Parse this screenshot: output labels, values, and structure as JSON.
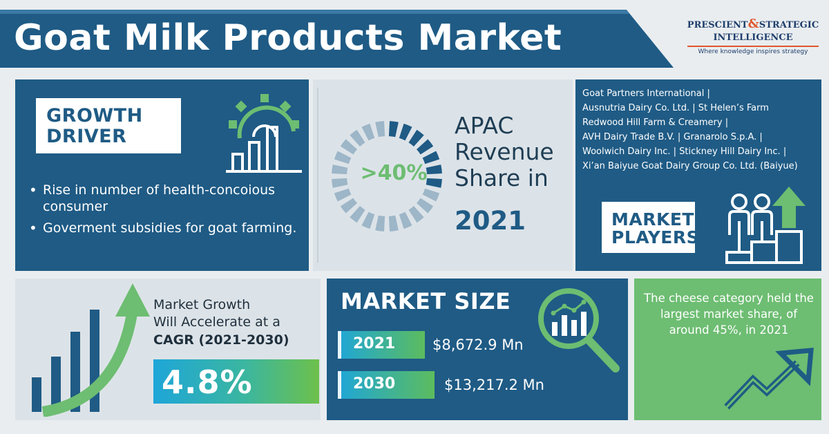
{
  "header": {
    "title": "Goat Milk Products Market"
  },
  "logo": {
    "name_part1": "PRESCIENT",
    "ampersand": "&",
    "name_part2": "STRATEGIC",
    "name_part3": "INTELLIGENCE",
    "tagline": "Where knowledge inspires strategy"
  },
  "growth_driver": {
    "label": "GROWTH DRIVER",
    "bullets": [
      "Rise in number of health-concoious consumer",
      "Goverment subsidies for goat farming."
    ],
    "icon": "gear-chart-icon"
  },
  "apac": {
    "value": ">40%",
    "text": "APAC Revenue Share in",
    "year": "2021",
    "icon": "donut-ring-icon"
  },
  "market_players": {
    "players": [
      "Goat Partners International |",
      "Ausnutria Dairy Co. Ltd. | St Helen’s Farm",
      "Redwood Hill Farm & Creamery |",
      "AVH Dairy Trade B.V. | Granarolo S.p.A. |",
      "Woolwich Dairy Inc. | Stickney Hill Dairy Inc. |",
      "Xi’an Baiyue Goat Dairy Group Co. Ltd. (Baiyue)"
    ],
    "label": "MARKET PLAYERS",
    "icon": "podium-people-icon"
  },
  "cagr": {
    "line1": "Market Growth",
    "line2": "Will Accelerate at a",
    "line3": "CAGR (2021-2030)",
    "value": "4.8%",
    "icon": "growth-bars-arrow-icon"
  },
  "market_size": {
    "title": "MARKET SIZE",
    "rows": [
      {
        "year": "2021",
        "value": "$8,672.9 Mn"
      },
      {
        "year": "2030",
        "value": "$13,217.2 Mn"
      }
    ],
    "icon": "magnifier-chart-icon"
  },
  "cheese": {
    "text": "The cheese category held the largest market share, of around 45%, in 2021",
    "icon": "trend-up-arrow-icon"
  },
  "colors": {
    "navy": "#1f5b85",
    "green": "#6dbd72",
    "light_panel": "#dce3e8",
    "background": "#e9edf0",
    "accent_orange": "#e0562a"
  }
}
